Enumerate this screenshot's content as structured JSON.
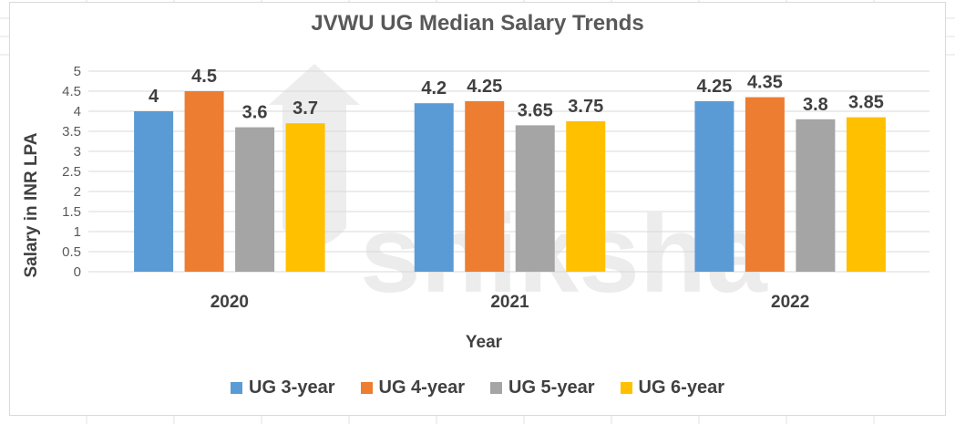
{
  "chart_data": {
    "type": "bar",
    "title": "JVWU UG Median Salary Trends",
    "xlabel": "Year",
    "ylabel": "Salary in INR LPA",
    "categories": [
      "2020",
      "2021",
      "2022"
    ],
    "series": [
      {
        "name": "UG 3-year",
        "values": [
          4,
          4.2,
          4.25
        ],
        "labels": [
          "4",
          "4.2",
          "4.25"
        ],
        "color": "#5b9bd5"
      },
      {
        "name": "UG 4-year",
        "values": [
          4.5,
          4.25,
          4.35
        ],
        "labels": [
          "4.5",
          "4.25",
          "4.35"
        ],
        "color": "#ed7d31"
      },
      {
        "name": "UG 5-year",
        "values": [
          3.6,
          3.65,
          3.8
        ],
        "labels": [
          "3.6",
          "3.65",
          "3.8"
        ],
        "color": "#a5a5a5"
      },
      {
        "name": "UG 6-year",
        "values": [
          3.7,
          3.75,
          3.85
        ],
        "labels": [
          "3.7",
          "3.75",
          "3.85"
        ],
        "color": "#ffc000"
      }
    ],
    "yticks": [
      "0",
      "0.5",
      "1",
      "1.5",
      "2",
      "2.5",
      "3",
      "3.5",
      "4",
      "4.5",
      "5"
    ],
    "ylim": [
      0,
      5
    ],
    "grid": true,
    "legend_position": "bottom"
  },
  "watermark": {
    "text": "shiksha"
  }
}
